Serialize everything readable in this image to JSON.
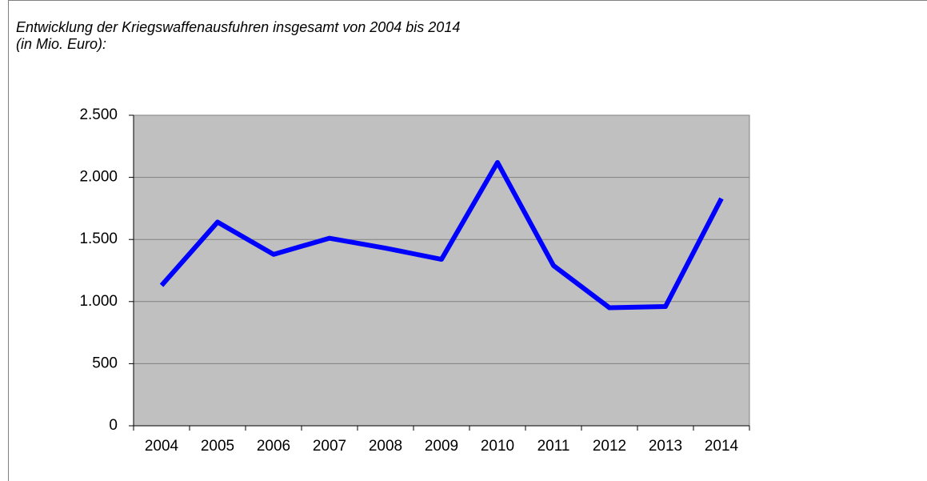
{
  "chart_data": {
    "type": "line",
    "title": "Entwicklung der Kriegswaffenausfuhren insgesamt von 2004 bis 2014",
    "subtitle": "(in Mio. Euro):",
    "categories": [
      "2004",
      "2005",
      "2006",
      "2007",
      "2008",
      "2009",
      "2010",
      "2011",
      "2012",
      "2013",
      "2014"
    ],
    "series": [
      {
        "color": "#0000ff",
        "values": [
          1130,
          1640,
          1380,
          1510,
          1430,
          1340,
          2120,
          1290,
          950,
          960,
          1830
        ]
      }
    ],
    "ylim": [
      0,
      2500
    ],
    "yticks": [
      0,
      500,
      {
        "value": 1000,
        "label": "1.000"
      },
      {
        "value": 1500,
        "label": "1.500"
      },
      {
        "value": 2000,
        "label": "2.000"
      },
      {
        "value": 2500,
        "label": "2.500"
      }
    ],
    "grid": true
  }
}
